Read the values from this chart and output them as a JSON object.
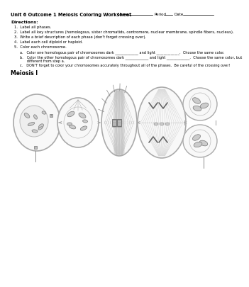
{
  "title": "Unit 6 Outcome 1 Meiosis Coloring Worksheet",
  "header_right": "Name __________________ Period ___ Date __________",
  "directions_title": "Directions:",
  "dir1": "1.  Label all phases.",
  "dir2": "2.  Label all key structures (homologous, sister chromatids, centromere, nuclear membrane, spindle fibers, nucleus).",
  "dir3": "3.  Write a brief description of each phase (don't forget crossing over).",
  "dir4": "4.  Label each cell diploid or haploid.",
  "dir5": "5.  Color each chromosome.",
  "suba": "a.   Color one homologous pair of chromosomes dark _____________ and light _____________.  Choose the same color.",
  "subb": "b.   Color the other homologous pair of chromosomes dark _____________ and light _____________.  Choose the same color, but",
  "subb2": "      different from step a.",
  "subc": "c.   DON'T forget to color your chromosomes accurately throughout all of the phases.  Be careful of the crossing over!",
  "meiosis_label": "Meiosis I",
  "bg_color": "#ffffff",
  "text_color": "#000000",
  "gray_dark": "#555555",
  "gray_mid": "#888888",
  "gray_light": "#cccccc",
  "gray_fill": "#d8d8d8",
  "gray_cell_edge": "#aaaaaa"
}
